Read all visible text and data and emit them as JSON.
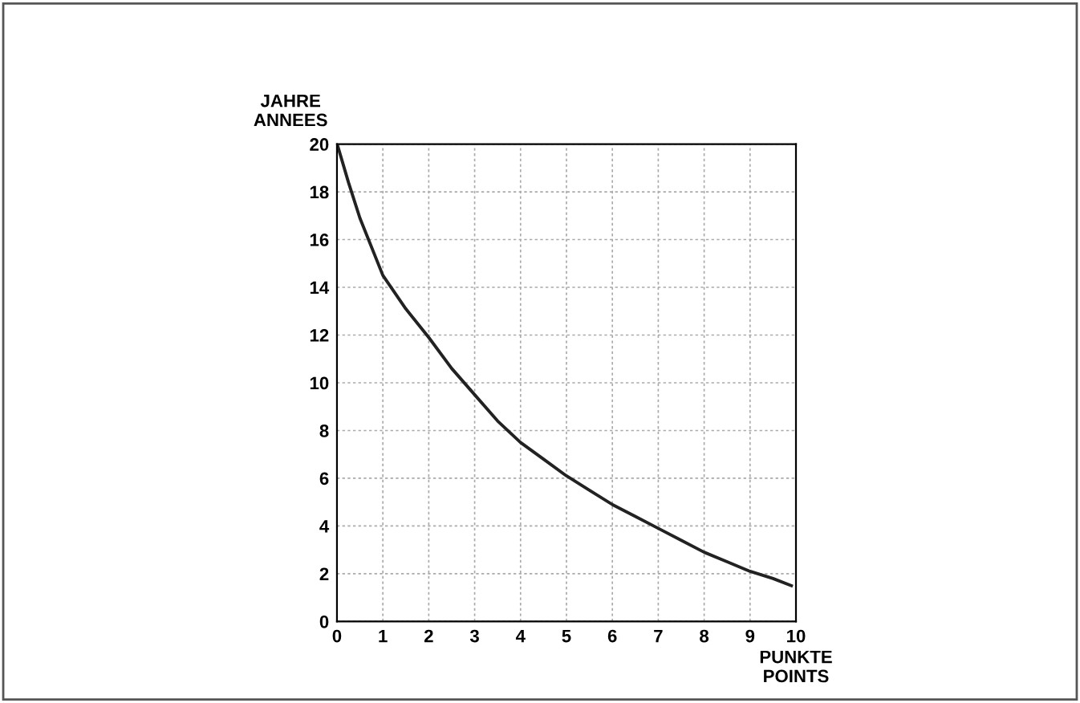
{
  "chart_data": {
    "type": "line",
    "xlabel": "PUNKTE\nPOINTS",
    "ylabel": "JAHRE\nANNEES",
    "x": [
      0.02,
      0.25,
      0.5,
      1,
      1.5,
      2,
      2.5,
      3,
      3.5,
      4,
      4.5,
      5,
      5.5,
      6,
      6.5,
      7,
      7.5,
      8,
      8.5,
      9,
      9.5,
      9.9
    ],
    "series": [
      {
        "color": "#222222",
        "values": [
          19.9,
          18.4,
          16.9,
          14.5,
          13.1,
          11.9,
          10.6,
          9.5,
          8.4,
          7.5,
          6.8,
          6.1,
          5.5,
          4.9,
          4.4,
          3.9,
          3.4,
          2.9,
          2.5,
          2.1,
          1.8,
          1.5
        ]
      }
    ],
    "xlim": [
      0,
      10
    ],
    "ylim": [
      0,
      20
    ],
    "xticks": [
      0,
      1,
      2,
      3,
      4,
      5,
      6,
      7,
      8,
      9,
      10
    ],
    "yticks": [
      0,
      2,
      4,
      6,
      8,
      10,
      12,
      14,
      16,
      18,
      20
    ],
    "grid": true,
    "legend": false,
    "marker": "none",
    "line_style": "solid"
  }
}
